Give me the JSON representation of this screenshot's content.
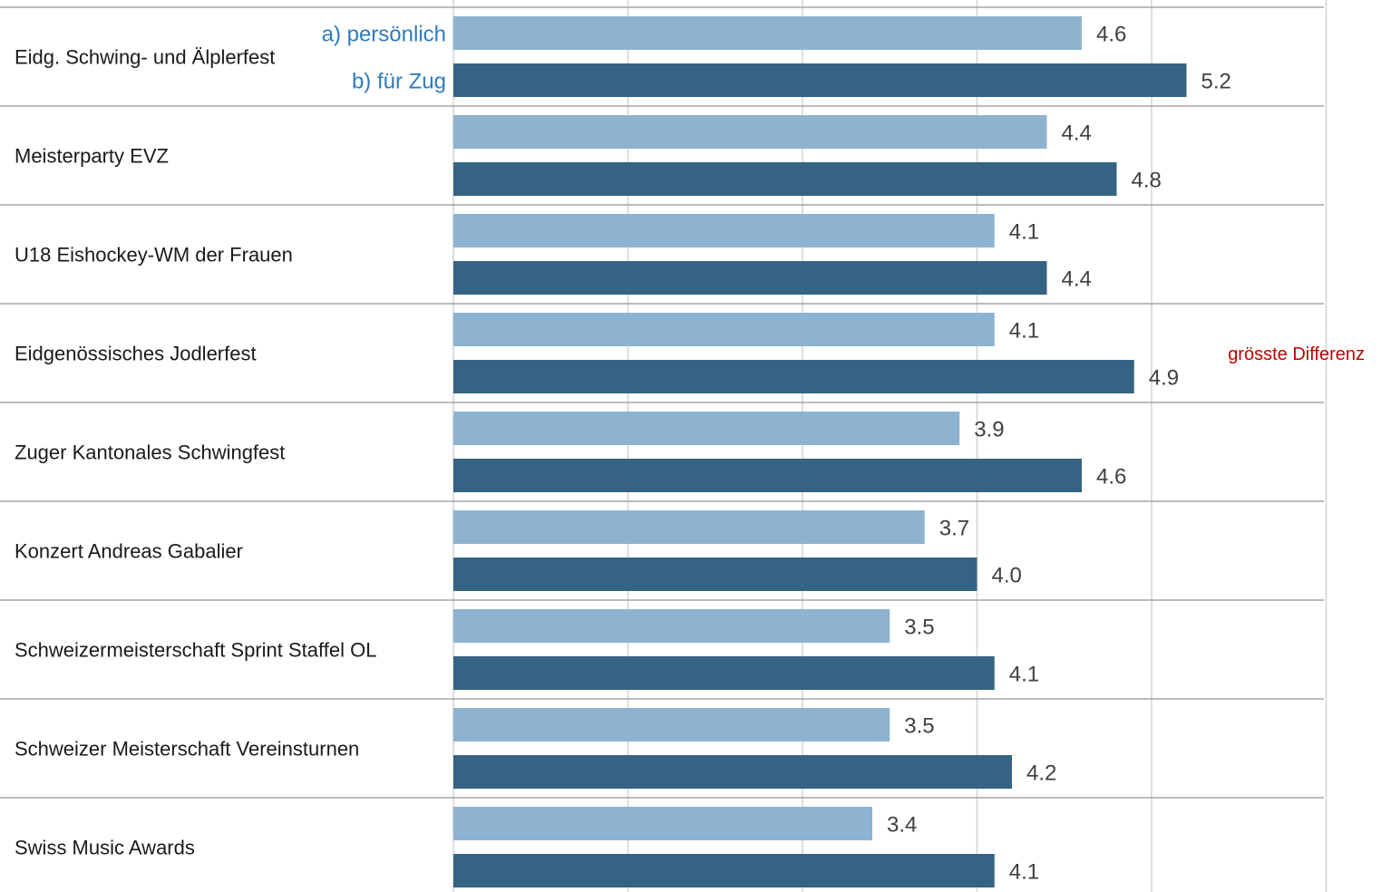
{
  "chart_data": {
    "type": "bar",
    "orientation": "horizontal",
    "categories": [
      "Eidg. Schwing- und Älplerfest",
      "Meisterparty EVZ",
      "U18 Eishockey-WM der Frauen",
      "Eidgenössisches Jodlerfest",
      "Zuger Kantonales Schwingfest",
      "Konzert Andreas Gabalier",
      "Schweizermeisterschaft Sprint Staffel OL",
      "Schweizer Meisterschaft Vereinsturnen",
      "Swiss Music Awards"
    ],
    "series": [
      {
        "name": "a) persönlich",
        "color": "#8db3d1",
        "values": [
          4.6,
          4.4,
          4.1,
          4.1,
          3.9,
          3.7,
          3.5,
          3.5,
          3.4
        ],
        "value_labels": [
          "4.6",
          "4.4",
          "4.1",
          "4.1",
          "3.9",
          "3.7",
          "3.5",
          "3.5",
          "3.4"
        ]
      },
      {
        "name": "b) für Zug",
        "color": "#356384",
        "values": [
          5.2,
          4.8,
          4.4,
          4.9,
          4.6,
          4.0,
          4.1,
          4.2,
          4.1
        ],
        "value_labels": [
          "5.2",
          "4.8",
          "4.4",
          "4.9",
          "4.6",
          "4.0",
          "4.1",
          "4.2",
          "4.1"
        ]
      }
    ],
    "xlim": [
      1,
      6
    ],
    "grid": true,
    "legend_color": "#2e7bbd",
    "annotation": {
      "text": "grösste Differenz",
      "category": "Eidgenössisches Jodlerfest",
      "color": "#c00000"
    }
  }
}
